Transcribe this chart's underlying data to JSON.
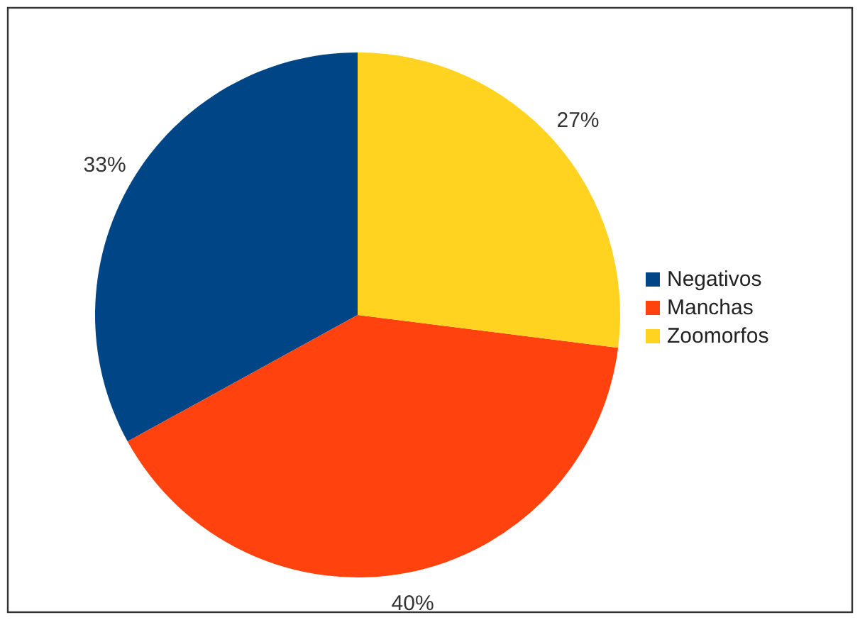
{
  "chart_data": {
    "type": "pie",
    "categories": [
      "Negativos",
      "Manchas",
      "Zoomorfos"
    ],
    "values": [
      33,
      40,
      27
    ],
    "colors": [
      "#004586",
      "#ff420e",
      "#ffd320"
    ],
    "value_labels": [
      "33%",
      "40%",
      "27%"
    ],
    "legend": "right"
  }
}
